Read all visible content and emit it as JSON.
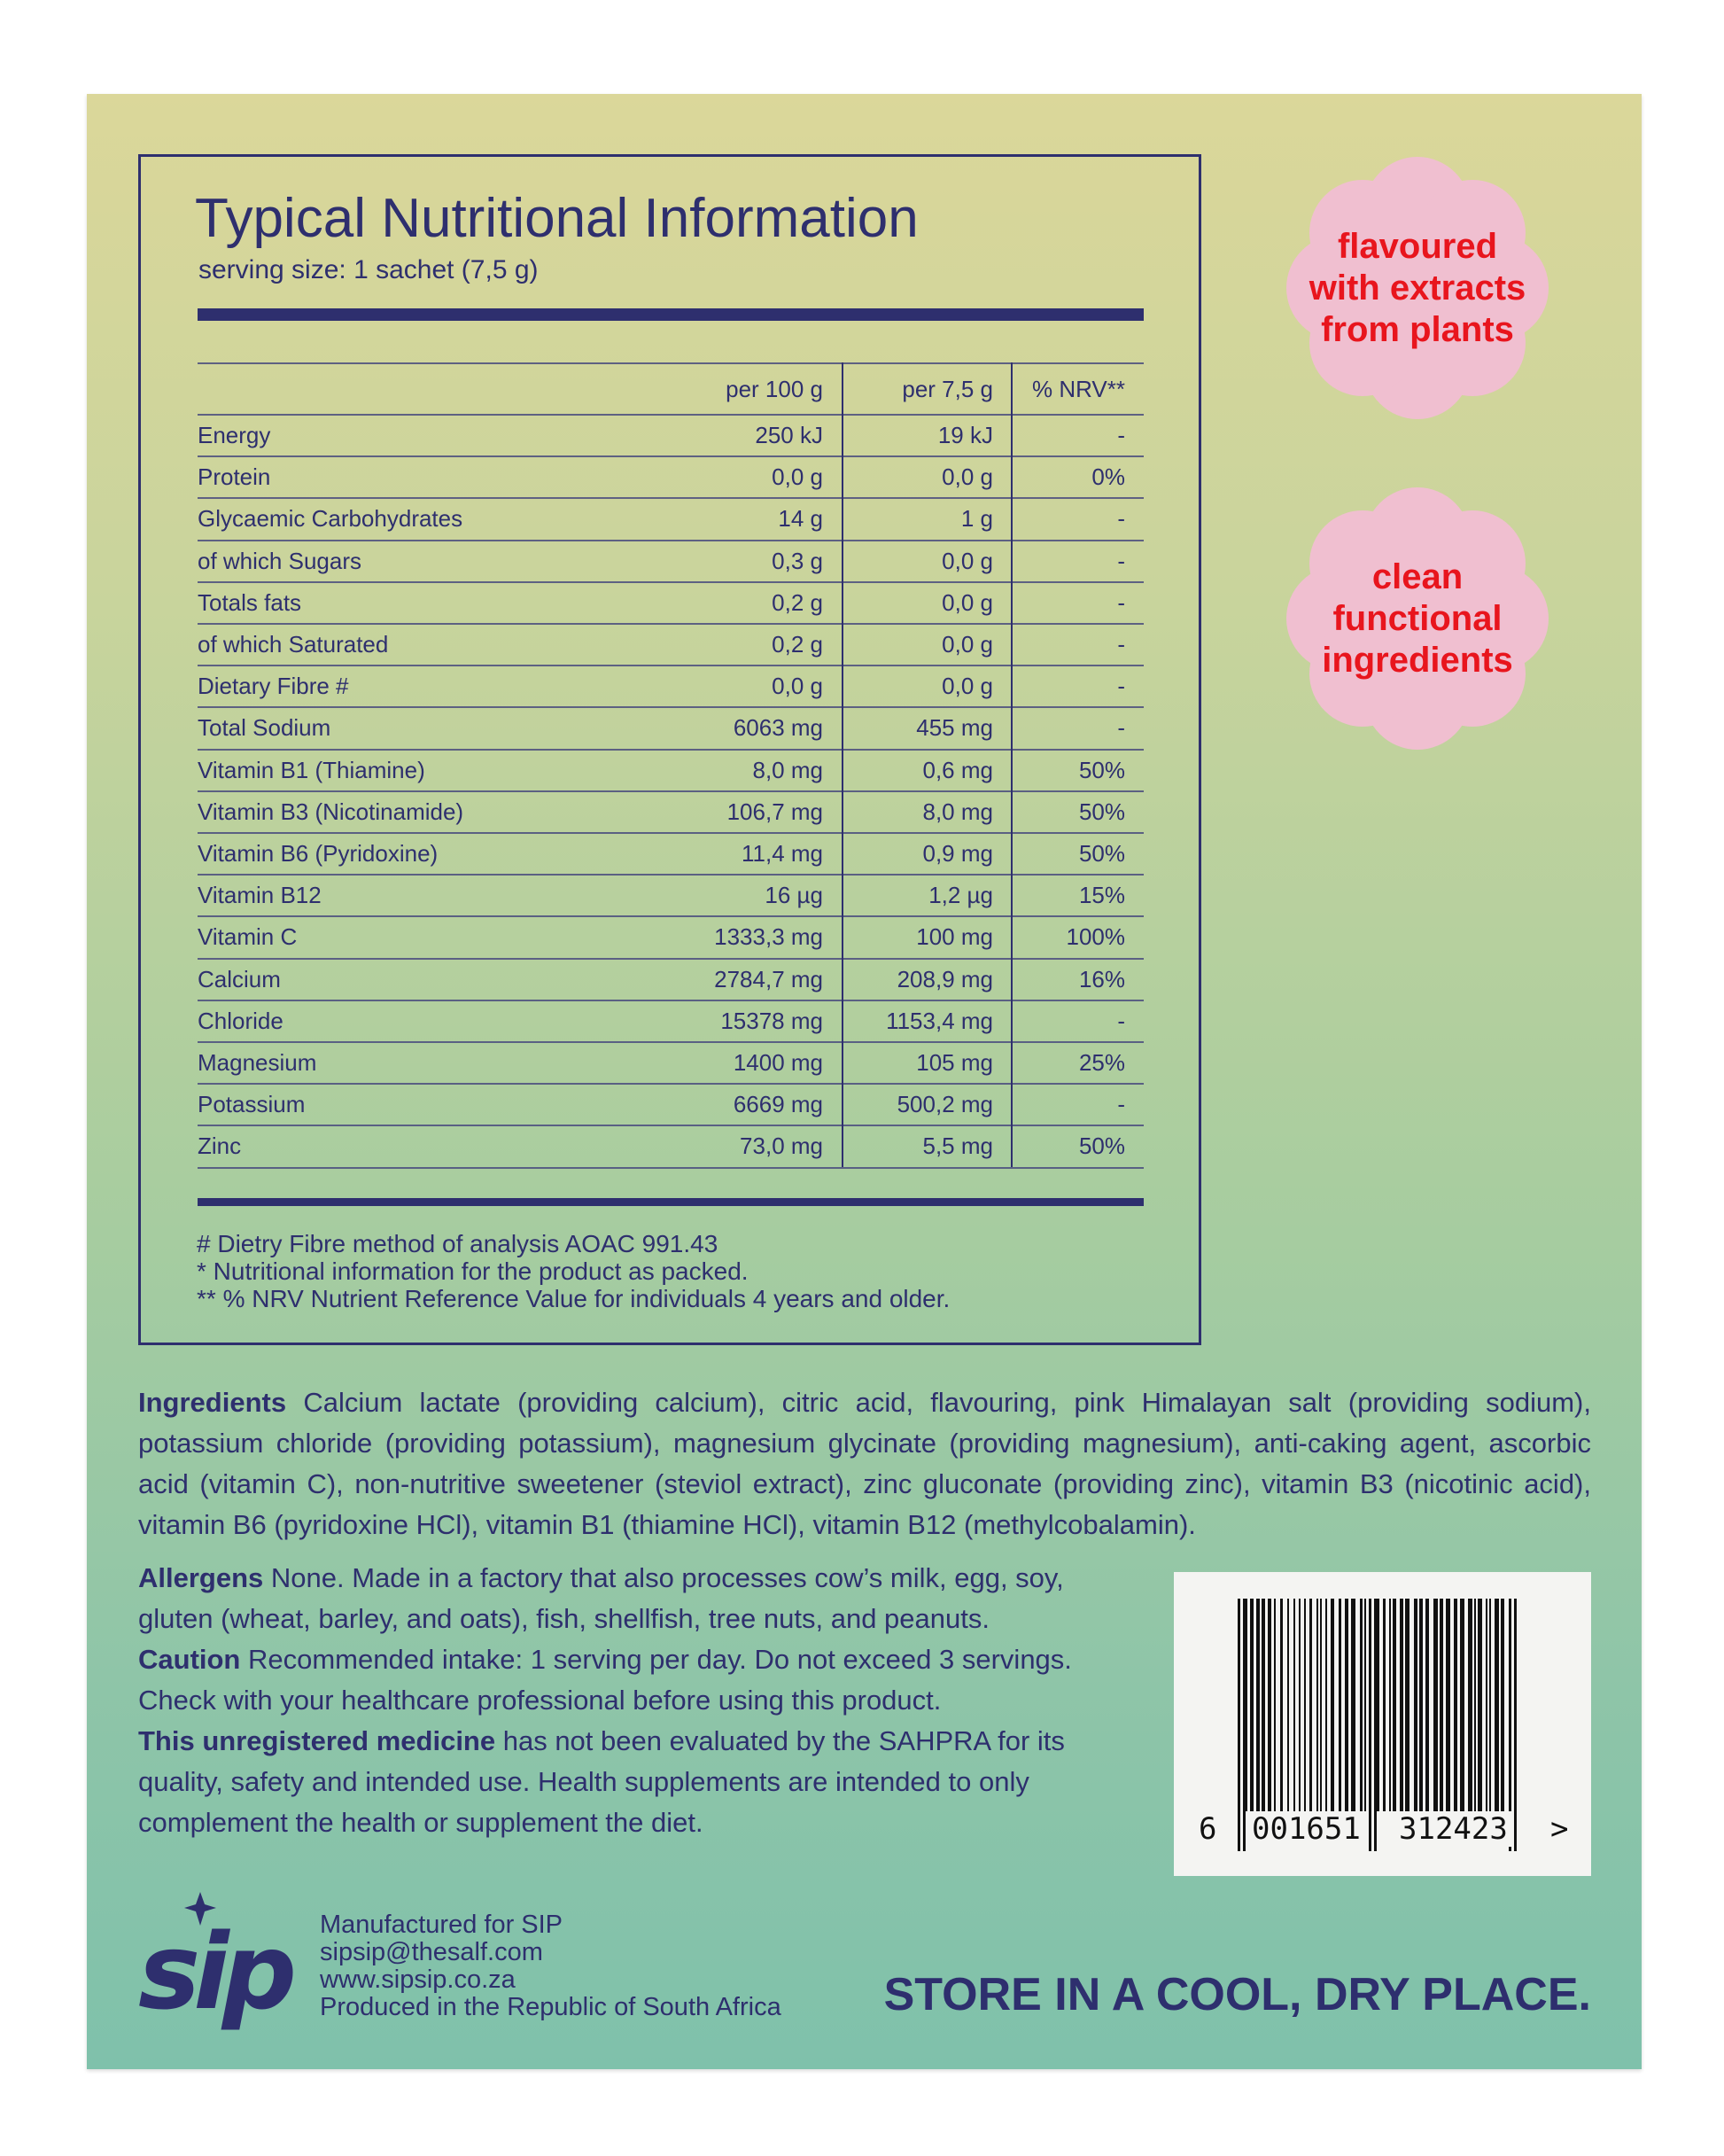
{
  "nutrition": {
    "title": "Typical Nutritional Information",
    "serving_size": "serving size: 1 sachet (7,5 g)",
    "headers": [
      "",
      "per 100 g",
      "per 7,5 g",
      "% NRV**"
    ],
    "rows": [
      [
        "Energy",
        "250 kJ",
        "19 kJ",
        "-"
      ],
      [
        "Protein",
        "0,0 g",
        "0,0 g",
        "0%"
      ],
      [
        "Glycaemic Carbohydrates",
        "14 g",
        "1 g",
        "-"
      ],
      [
        "of which Sugars",
        "0,3 g",
        "0,0 g",
        "-"
      ],
      [
        "Totals fats",
        "0,2 g",
        "0,0 g",
        "-"
      ],
      [
        "of which Saturated",
        "0,2 g",
        "0,0 g",
        "-"
      ],
      [
        "Dietary Fibre #",
        "0,0 g",
        "0,0 g",
        "-"
      ],
      [
        "Total Sodium",
        "6063 mg",
        "455 mg",
        "-"
      ],
      [
        "Vitamin B1 (Thiamine)",
        "8,0 mg",
        "0,6 mg",
        "50%"
      ],
      [
        "Vitamin B3 (Nicotinamide)",
        "106,7 mg",
        "8,0 mg",
        "50%"
      ],
      [
        "Vitamin B6 (Pyridoxine)",
        "11,4 mg",
        "0,9 mg",
        "50%"
      ],
      [
        "Vitamin B12",
        "16 µg",
        "1,2 µg",
        "15%"
      ],
      [
        "Vitamin C",
        "1333,3 mg",
        "100 mg",
        "100%"
      ],
      [
        "Calcium",
        "2784,7 mg",
        "208,9 mg",
        "16%"
      ],
      [
        "Chloride",
        "15378 mg",
        "1153,4 mg",
        "-"
      ],
      [
        "Magnesium",
        "1400 mg",
        "105 mg",
        "25%"
      ],
      [
        "Potassium",
        "6669 mg",
        "500,2 mg",
        "-"
      ],
      [
        "Zinc",
        "73,0 mg",
        "5,5 mg",
        "50%"
      ]
    ],
    "footnotes": [
      "# Dietry Fibre method of analysis AOAC 991.43",
      "* Nutritional information for the product as packed.",
      "** % NRV Nutrient Reference Value for individuals 4 years and older."
    ]
  },
  "badges": [
    {
      "lines": [
        "flavoured",
        "with extracts",
        "from plants"
      ]
    },
    {
      "lines": [
        "clean",
        "functional",
        "ingredients"
      ]
    }
  ],
  "ingredients": {
    "label": "Ingredients",
    "text": " Calcium lactate (providing calcium), citric acid,  flavouring, pink Himalayan salt (providing sodium), potassium chloride (providing potassium), magnesium glycinate (providing magnesium), anti-caking agent, ascorbic acid  (vitamin C), non-nutritive sweetener (steviol extract), zinc gluconate (providing zinc), vitamin B3 (nicotinic acid), vitamin B6 (pyridoxine HCl), vitamin B1 (thiamine HCl), vitamin B12 (methylcobalamin)."
  },
  "allergens": {
    "label": "Allergens",
    "text": "  None. Made in a factory that also processes cow’s milk, egg, soy, gluten (wheat, barley, and oats), fish, shellfish, tree nuts, and peanuts."
  },
  "caution": {
    "label": "Caution",
    "text": "  Recommended intake: 1 serving per day. Do not exceed 3 servings. Check with your healthcare professional before using this product."
  },
  "unregistered": {
    "label": "This unregistered medicine",
    "text": " has not been evaluated by the SAHPRA for its quality, safety and intended use. Health supplements are intended to only complement the health or supplement the diet."
  },
  "barcode": {
    "first": "6",
    "left": "001651",
    "right": "312423",
    "arrow": ">"
  },
  "brand": {
    "logo": "sip",
    "lines": [
      "Manufactured for SIP",
      "sipsip@thesalf.com",
      "www.sipsip.co.za",
      "Produced in the Republic of South Africa"
    ]
  },
  "storage": "STORE IN A COOL, DRY PLACE.",
  "colors": {
    "ink": "#2e2f6e",
    "badge_pink": "#f0bfd0",
    "badge_text": "#e8151d",
    "bg_top": "#dbd79a",
    "bg_bottom": "#7fc1ab"
  }
}
